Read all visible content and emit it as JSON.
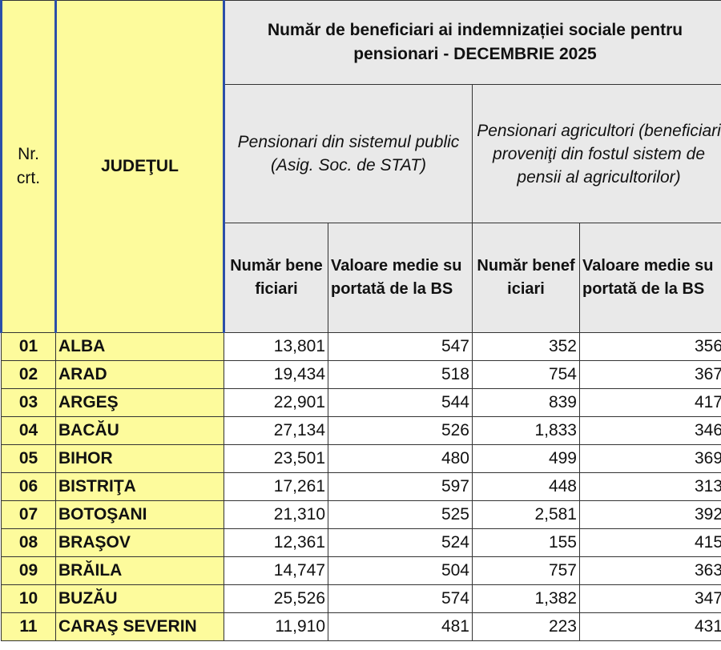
{
  "table": {
    "title": "Număr de beneficiari ai indemnizației sociale pentru pensionari - DECEMBRIE 2025",
    "col_nr": "Nr. crt.",
    "col_judet": "JUDEŢUL",
    "group_1": "Pensionari din sistemul public (Asig. Soc. de STAT)",
    "group_2": "Pensionari agricultori (beneficiari proveniţi din fostul sistem de pensii al agricultorilor)",
    "sub_1": "Număr beneficiari",
    "sub_2": "Valoare medie suportată de la BS",
    "sub_3": "Număr beneficiari",
    "sub_4": "Valoare medie suportată de la BS",
    "rows": [
      [
        "01",
        "ALBA",
        "13,801",
        "547",
        "352",
        "356"
      ],
      [
        "02",
        "ARAD",
        "19,434",
        "518",
        "754",
        "367"
      ],
      [
        "03",
        "ARGEŞ",
        "22,901",
        "544",
        "839",
        "417"
      ],
      [
        "04",
        "BACĂU",
        "27,134",
        "526",
        "1,833",
        "346"
      ],
      [
        "05",
        "BIHOR",
        "23,501",
        "480",
        "499",
        "369"
      ],
      [
        "06",
        "BISTRIŢA",
        "17,261",
        "597",
        "448",
        "313"
      ],
      [
        "07",
        "BOTOŞANI",
        "21,310",
        "525",
        "2,581",
        "392"
      ],
      [
        "08",
        "BRAŞOV",
        "12,361",
        "524",
        "155",
        "415"
      ],
      [
        "09",
        "BRĂILA",
        "14,747",
        "504",
        "757",
        "363"
      ],
      [
        "10",
        "BUZĂU",
        "25,526",
        "574",
        "1,382",
        "347"
      ],
      [
        "11",
        "CARAŞ SEVERIN",
        "11,910",
        "481",
        "223",
        "431"
      ]
    ]
  }
}
